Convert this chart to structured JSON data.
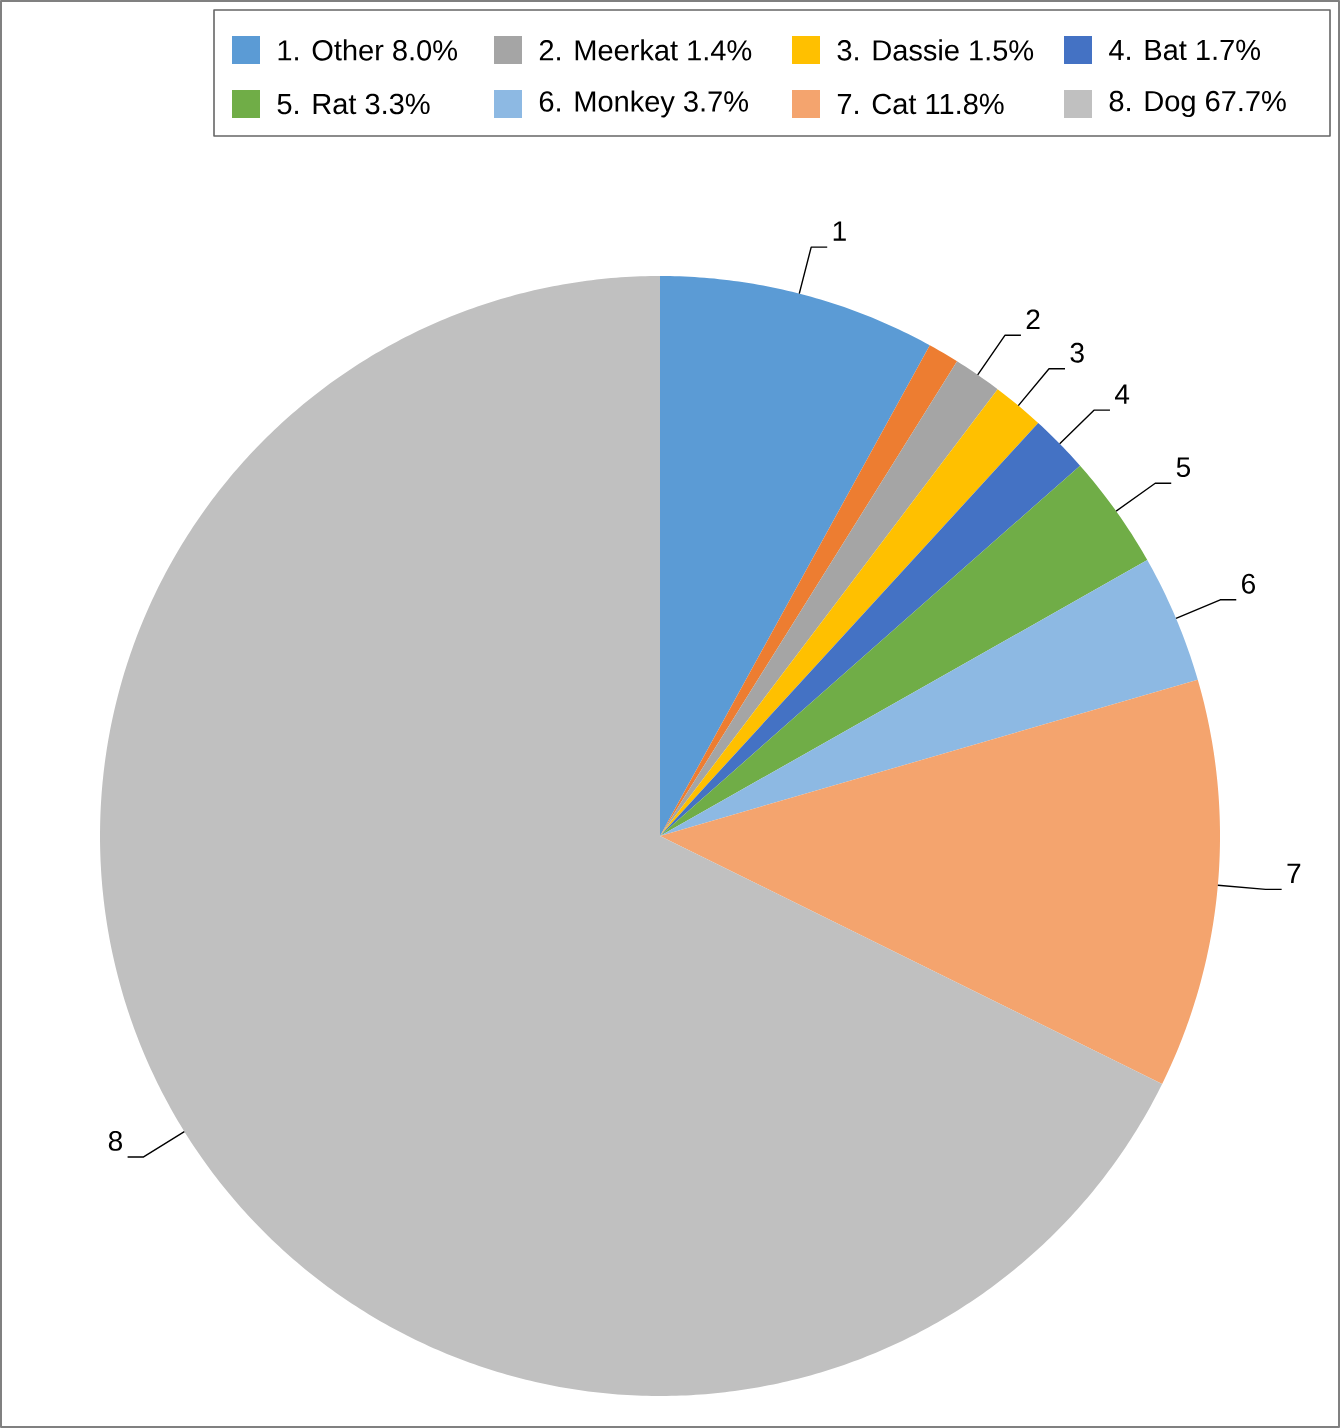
{
  "chart_data": {
    "type": "pie",
    "categories": [
      "1. Other 8.0%",
      null,
      "2. Meerkat 1.4%",
      "3. Dassie 1.5%",
      "4. Bat 1.7%",
      "5. Rat 3.3%",
      "6. Monkey 3.7%",
      "7. Cat 11.8%",
      "8. Dog 67.7%"
    ],
    "values": [
      8.0,
      0.9,
      1.4,
      1.5,
      1.7,
      3.3,
      3.7,
      11.8,
      67.7
    ],
    "colors": [
      "#5b9bd5",
      "#ed7d31",
      "#a5a5a5",
      "#ffc000",
      "#4472c4",
      "#70ad47",
      "#8db9e3",
      "#f4a46e",
      "#c0c0c0"
    ],
    "annotations": [
      "1",
      "2",
      "3",
      "4",
      "5",
      "6",
      "7",
      "8"
    ],
    "legend": "top"
  }
}
